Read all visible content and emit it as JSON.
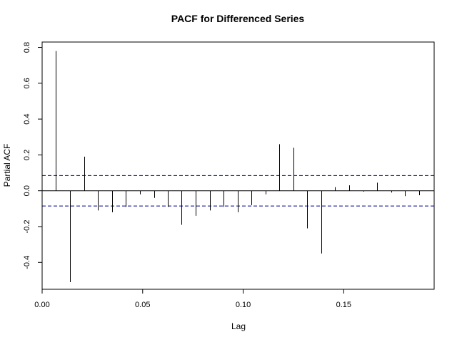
{
  "chart_data": {
    "type": "bar",
    "title": "PACF for Differenced Series",
    "xlabel": "Lag",
    "ylabel": "Partial ACF",
    "xlim": [
      0.0,
      0.195
    ],
    "ylim": [
      -0.55,
      0.83
    ],
    "xticks": [
      {
        "value": 0.0,
        "label": "0.00"
      },
      {
        "value": 0.05,
        "label": "0.05"
      },
      {
        "value": 0.1,
        "label": "0.10"
      },
      {
        "value": 0.15,
        "label": "0.15"
      }
    ],
    "yticks": [
      {
        "value": -0.4,
        "label": "-0.4"
      },
      {
        "value": -0.2,
        "label": "-0.2"
      },
      {
        "value": 0.0,
        "label": "0.0"
      },
      {
        "value": 0.2,
        "label": "0.2"
      },
      {
        "value": 0.4,
        "label": "0.4"
      },
      {
        "value": 0.6,
        "label": "0.6"
      },
      {
        "value": 0.8,
        "label": "0.8"
      }
    ],
    "confidence_band": 0.085,
    "ci_color": "#00008b",
    "series": [
      {
        "name": "Partial ACF",
        "x": [
          0.0069,
          0.0139,
          0.0208,
          0.0278,
          0.0347,
          0.0417,
          0.0486,
          0.0556,
          0.0625,
          0.0694,
          0.0764,
          0.0833,
          0.0903,
          0.0972,
          0.1042,
          0.1111,
          0.1181,
          0.125,
          0.1319,
          0.1389,
          0.1458,
          0.1528,
          0.1597,
          0.1667,
          0.1736,
          0.1806,
          0.1875
        ],
        "values": [
          0.78,
          -0.51,
          0.19,
          -0.11,
          -0.12,
          -0.09,
          -0.02,
          -0.04,
          -0.09,
          -0.19,
          -0.14,
          -0.11,
          -0.09,
          -0.12,
          -0.08,
          -0.02,
          0.26,
          0.24,
          -0.21,
          -0.35,
          0.02,
          0.03,
          -0.005,
          0.045,
          -0.01,
          -0.03,
          -0.025
        ]
      }
    ]
  }
}
